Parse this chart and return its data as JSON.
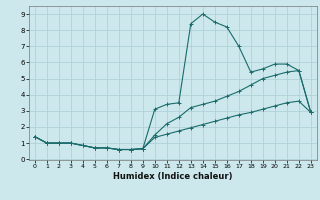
{
  "title": "",
  "xlabel": "Humidex (Indice chaleur)",
  "bg_color": "#cce8ec",
  "grid_color": "#aacdd4",
  "line_color": "#1a6b6b",
  "xlim": [
    -0.5,
    23.5
  ],
  "ylim": [
    -0.05,
    9.5
  ],
  "xticks": [
    0,
    1,
    2,
    3,
    4,
    5,
    6,
    7,
    8,
    9,
    10,
    11,
    12,
    13,
    14,
    15,
    16,
    17,
    18,
    19,
    20,
    21,
    22,
    23
  ],
  "yticks": [
    0,
    1,
    2,
    3,
    4,
    5,
    6,
    7,
    8,
    9
  ],
  "line1_x": [
    0,
    1,
    2,
    3,
    4,
    5,
    6,
    7,
    8,
    9,
    10,
    11,
    12,
    13,
    14,
    15,
    16,
    17,
    18,
    19,
    20,
    21,
    22,
    23
  ],
  "line1_y": [
    1.4,
    1.0,
    1.0,
    1.0,
    0.85,
    0.7,
    0.7,
    0.6,
    0.6,
    0.65,
    3.1,
    3.4,
    3.5,
    8.4,
    9.0,
    8.5,
    8.2,
    7.0,
    5.4,
    5.6,
    5.9,
    5.9,
    5.5,
    2.9
  ],
  "line2_x": [
    0,
    1,
    2,
    3,
    4,
    5,
    6,
    7,
    8,
    9,
    10,
    11,
    12,
    13,
    14,
    15,
    16,
    17,
    18,
    19,
    20,
    21,
    22,
    23
  ],
  "line2_y": [
    1.4,
    1.0,
    1.0,
    1.0,
    0.85,
    0.7,
    0.7,
    0.6,
    0.6,
    0.65,
    1.5,
    2.2,
    2.6,
    3.2,
    3.4,
    3.6,
    3.9,
    4.2,
    4.6,
    5.0,
    5.2,
    5.4,
    5.5,
    2.9
  ],
  "line3_x": [
    0,
    1,
    2,
    3,
    4,
    5,
    6,
    7,
    8,
    9,
    10,
    11,
    12,
    13,
    14,
    15,
    16,
    17,
    18,
    19,
    20,
    21,
    22,
    23
  ],
  "line3_y": [
    1.4,
    1.0,
    1.0,
    1.0,
    0.85,
    0.7,
    0.7,
    0.6,
    0.6,
    0.65,
    1.35,
    1.55,
    1.75,
    1.95,
    2.15,
    2.35,
    2.55,
    2.75,
    2.9,
    3.1,
    3.3,
    3.5,
    3.6,
    2.9
  ]
}
